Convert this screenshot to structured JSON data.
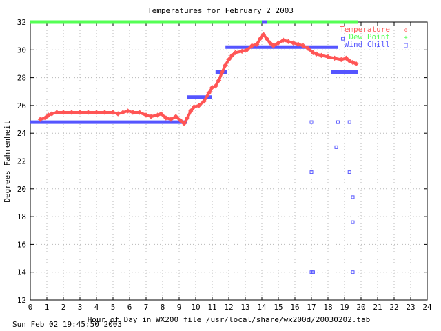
{
  "chart_data": {
    "type": "line",
    "title": "Temperatures for February  2 2003",
    "xlabel": "Hour of Day in WX200 file /usr/local/share/wx200d/20030202.tab",
    "ylabel": "Degrees Fahrenheit",
    "xlim": [
      0,
      24
    ],
    "ylim": [
      12,
      32
    ],
    "x_ticks": [
      0,
      1,
      2,
      3,
      4,
      5,
      6,
      7,
      8,
      9,
      10,
      11,
      12,
      13,
      14,
      15,
      16,
      17,
      18,
      19,
      20,
      21,
      22,
      23,
      24
    ],
    "y_ticks": [
      12,
      14,
      16,
      18,
      20,
      22,
      24,
      26,
      28,
      30,
      32
    ],
    "grid": true,
    "legend_position": "top-right",
    "series": [
      {
        "name": "Temperature",
        "marker": "◇",
        "color": "#ff5555",
        "points": [
          [
            0.6,
            25.0
          ],
          [
            0.9,
            25.1
          ],
          [
            1.1,
            25.3
          ],
          [
            1.3,
            25.4
          ],
          [
            1.6,
            25.5
          ],
          [
            2.0,
            25.5
          ],
          [
            2.5,
            25.5
          ],
          [
            3.0,
            25.5
          ],
          [
            3.5,
            25.5
          ],
          [
            4.0,
            25.5
          ],
          [
            4.5,
            25.5
          ],
          [
            5.0,
            25.5
          ],
          [
            5.3,
            25.4
          ],
          [
            5.6,
            25.5
          ],
          [
            5.9,
            25.6
          ],
          [
            6.2,
            25.5
          ],
          [
            6.6,
            25.5
          ],
          [
            7.0,
            25.3
          ],
          [
            7.3,
            25.2
          ],
          [
            7.7,
            25.3
          ],
          [
            7.9,
            25.4
          ],
          [
            8.2,
            25.1
          ],
          [
            8.5,
            25.0
          ],
          [
            8.8,
            25.2
          ],
          [
            9.1,
            24.9
          ],
          [
            9.3,
            24.7
          ],
          [
            9.5,
            25.1
          ],
          [
            9.7,
            25.6
          ],
          [
            9.9,
            25.9
          ],
          [
            10.2,
            26.0
          ],
          [
            10.5,
            26.3
          ],
          [
            10.8,
            26.9
          ],
          [
            11.0,
            27.3
          ],
          [
            11.2,
            27.4
          ],
          [
            11.4,
            27.8
          ],
          [
            11.6,
            28.4
          ],
          [
            11.8,
            28.9
          ],
          [
            12.0,
            29.3
          ],
          [
            12.2,
            29.6
          ],
          [
            12.4,
            29.8
          ],
          [
            12.8,
            29.9
          ],
          [
            13.1,
            30.0
          ],
          [
            13.4,
            30.3
          ],
          [
            13.7,
            30.4
          ],
          [
            13.9,
            30.8
          ],
          [
            14.1,
            31.1
          ],
          [
            14.3,
            30.8
          ],
          [
            14.5,
            30.5
          ],
          [
            14.7,
            30.3
          ],
          [
            15.0,
            30.5
          ],
          [
            15.3,
            30.7
          ],
          [
            15.6,
            30.6
          ],
          [
            15.9,
            30.5
          ],
          [
            16.2,
            30.4
          ],
          [
            16.5,
            30.3
          ],
          [
            16.8,
            30.1
          ],
          [
            17.1,
            29.8
          ],
          [
            17.3,
            29.7
          ],
          [
            17.6,
            29.6
          ],
          [
            18.0,
            29.5
          ],
          [
            18.4,
            29.4
          ],
          [
            18.8,
            29.3
          ],
          [
            19.1,
            29.4
          ],
          [
            19.3,
            29.2
          ],
          [
            19.5,
            29.1
          ],
          [
            19.7,
            29.0
          ]
        ]
      },
      {
        "name": "Dew Point",
        "marker": "+",
        "color": "#55ff55",
        "points": [
          [
            0.0,
            32.0
          ],
          [
            19.8,
            32.0
          ]
        ]
      },
      {
        "name": "Wind Chill",
        "marker": "□",
        "color": "#5555ff",
        "segments": [
          [
            0.0,
            9.5,
            24.8
          ],
          [
            9.5,
            11.0,
            26.6
          ],
          [
            11.2,
            11.9,
            28.4
          ],
          [
            11.8,
            18.6,
            30.2
          ],
          [
            14.0,
            14.3,
            32.0
          ],
          [
            18.2,
            19.8,
            28.4
          ]
        ],
        "points": [
          [
            17.0,
            24.8
          ],
          [
            18.6,
            24.8
          ],
          [
            19.3,
            24.8
          ],
          [
            18.5,
            23.0
          ],
          [
            17.0,
            21.2
          ],
          [
            19.3,
            21.2
          ],
          [
            19.5,
            19.4
          ],
          [
            19.5,
            17.6
          ],
          [
            17.0,
            14.0
          ],
          [
            17.1,
            14.0
          ],
          [
            19.5,
            14.0
          ],
          [
            18.9,
            30.8
          ],
          [
            18.5,
            28.4
          ]
        ]
      }
    ]
  },
  "footer": {
    "timestamp": "Sun Feb 02 19:45:50 2003"
  }
}
